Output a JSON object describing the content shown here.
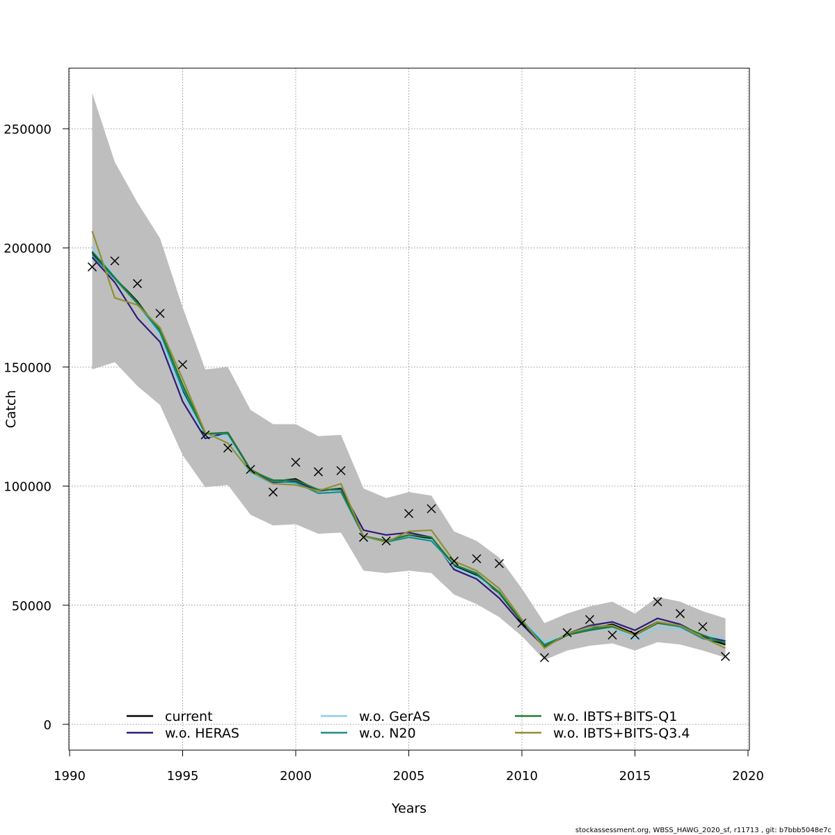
{
  "chart_data": {
    "type": "line",
    "xlabel": "Years",
    "ylabel": "Catch",
    "xlim": [
      1990,
      2020
    ],
    "ylim": [
      0,
      270000
    ],
    "x_ticks": [
      "1990",
      "1995",
      "2000",
      "2005",
      "2010",
      "2015",
      "2020"
    ],
    "y_ticks": [
      "0",
      "50000",
      "100000",
      "150000",
      "200000",
      "250000"
    ],
    "grid": true,
    "legend_position": "bottom",
    "x": [
      1991,
      1992,
      1993,
      1994,
      1995,
      1996,
      1997,
      1998,
      1999,
      2000,
      2001,
      2002,
      2003,
      2004,
      2005,
      2006,
      2007,
      2008,
      2009,
      2010,
      2011,
      2012,
      2013,
      2014,
      2015,
      2016,
      2017,
      2018,
      2019
    ],
    "confidence_band": {
      "color": "#bebebe",
      "upper": [
        265000,
        236000,
        219000,
        204000,
        175000,
        149000,
        150000,
        132000,
        126000,
        126000,
        121000,
        121500,
        99000,
        95000,
        97500,
        96000,
        81000,
        77000,
        70000,
        57000,
        42500,
        46500,
        49500,
        51500,
        46500,
        53500,
        51500,
        47500,
        44500
      ],
      "lower": [
        149000,
        152000,
        142000,
        134000,
        113000,
        99500,
        100500,
        88000,
        83500,
        84000,
        80000,
        80500,
        64500,
        63500,
        64500,
        63500,
        54500,
        50500,
        45000,
        37000,
        27000,
        31000,
        33000,
        34000,
        31000,
        34500,
        33500,
        31000,
        28000
      ]
    },
    "observed": {
      "marker": "x",
      "values": [
        192000,
        194500,
        185000,
        172500,
        151000,
        121500,
        116000,
        107000,
        97500,
        110000,
        106000,
        106500,
        78500,
        77000,
        88500,
        90500,
        68500,
        69500,
        67500,
        42500,
        28000,
        38500,
        44000,
        37500,
        37500,
        51500,
        46500,
        41000,
        28500
      ]
    },
    "series": [
      {
        "name": "current",
        "color": "#000000",
        "width": 2.2,
        "values": [
          198000,
          187500,
          177500,
          164500,
          140000,
          122000,
          122000,
          107000,
          102000,
          103000,
          98000,
          99000,
          79000,
          77000,
          79500,
          78000,
          66500,
          62500,
          55000,
          43000,
          32500,
          37500,
          40000,
          42000,
          38000,
          43000,
          41000,
          36500,
          33500
        ]
      },
      {
        "name": "w.o. HERAS",
        "color": "#2e1a7a",
        "width": 2.2,
        "values": [
          196000,
          185500,
          170500,
          160500,
          135500,
          120000,
          122500,
          107000,
          101500,
          102000,
          98000,
          99000,
          81500,
          79500,
          80500,
          78500,
          65000,
          61000,
          53000,
          42000,
          32500,
          38000,
          41500,
          43000,
          39500,
          44500,
          42000,
          37000,
          35000
        ]
      },
      {
        "name": "w.o. GerAS",
        "color": "#87ceeb",
        "width": 2.2,
        "values": [
          200500,
          188000,
          176500,
          163000,
          139000,
          121000,
          120500,
          104500,
          101000,
          101000,
          97000,
          98000,
          78500,
          76500,
          78500,
          77500,
          66000,
          62000,
          55500,
          44000,
          34500,
          37500,
          39500,
          40500,
          35500,
          40500,
          40000,
          37500,
          36500
        ]
      },
      {
        "name": "w.o. N20",
        "color": "#1d8c8c",
        "width": 2.2,
        "values": [
          197000,
          187000,
          176500,
          164500,
          141000,
          122000,
          122000,
          107000,
          102000,
          101500,
          97000,
          97500,
          79000,
          76500,
          78500,
          77000,
          67000,
          63500,
          55000,
          43500,
          33500,
          37500,
          40000,
          41500,
          37500,
          42500,
          41000,
          36000,
          34500
        ]
      },
      {
        "name": "w.o. IBTS+BITS-Q1",
        "color": "#1f7a2f",
        "width": 2.2,
        "values": [
          198500,
          187500,
          177000,
          165500,
          142500,
          122000,
          122500,
          106500,
          102500,
          102500,
          98500,
          98500,
          79000,
          77000,
          79500,
          78500,
          67000,
          63000,
          55500,
          43000,
          33000,
          37500,
          39500,
          41000,
          37500,
          42500,
          41500,
          37500,
          34000
        ]
      },
      {
        "name": "w.o. IBTS+BITS-Q3.4",
        "color": "#8f8f34",
        "width": 2.2,
        "values": [
          207000,
          179000,
          176000,
          166500,
          145000,
          122500,
          118000,
          106000,
          101000,
          100500,
          98000,
          101000,
          79000,
          76500,
          81000,
          81500,
          68500,
          64500,
          57000,
          44000,
          32000,
          38000,
          41000,
          41500,
          37500,
          43000,
          41500,
          36500,
          32000
        ]
      }
    ]
  },
  "footer": {
    "text": "stockassessment.org, WBSS_HAWG_2020_sf, r11713 , git: b7bbb5048e7c"
  }
}
